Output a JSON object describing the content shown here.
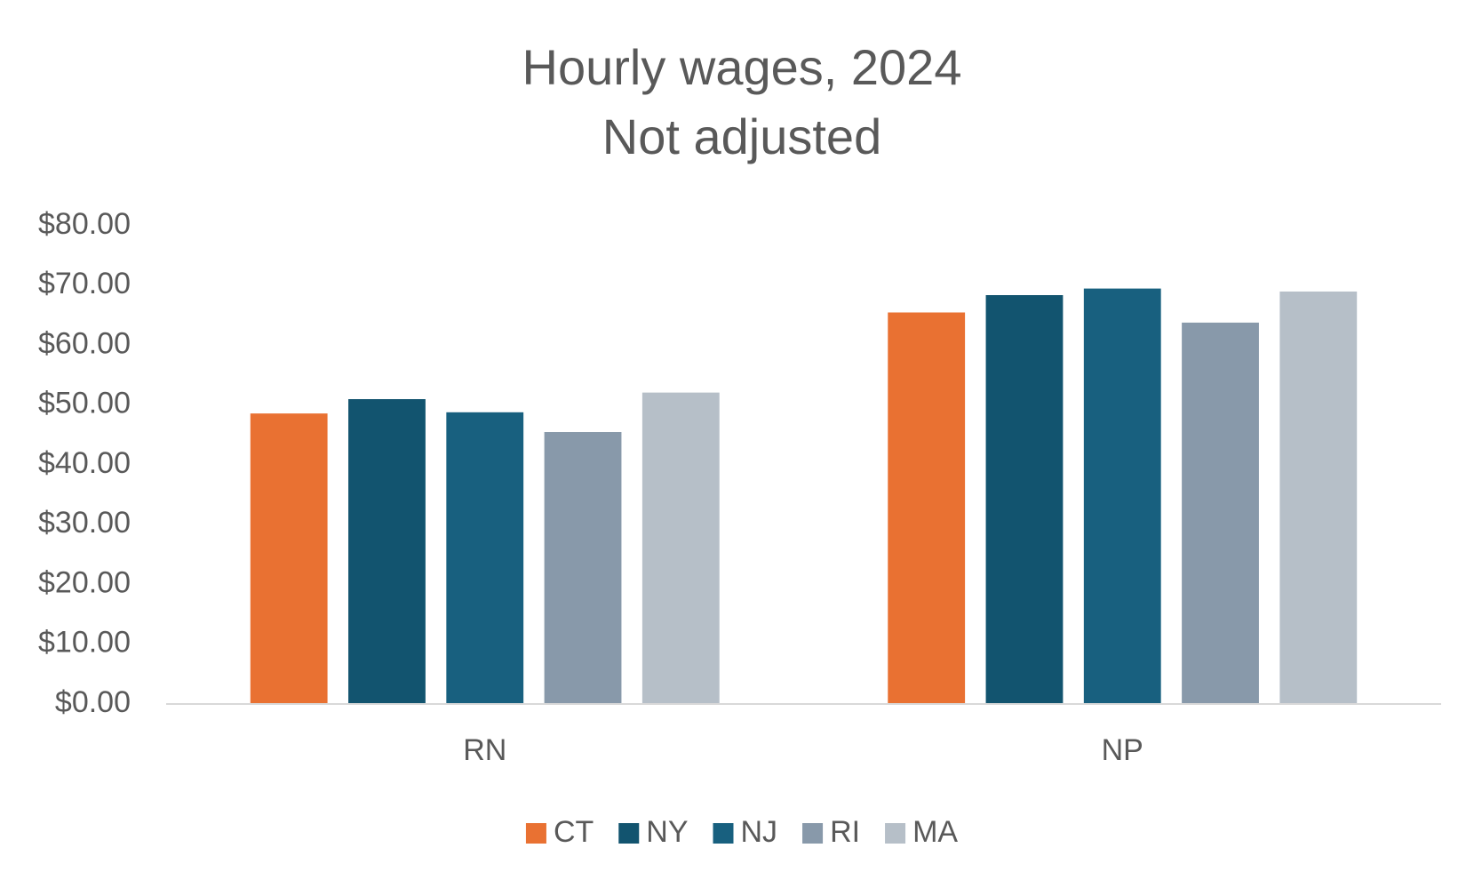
{
  "chart_data": {
    "type": "bar",
    "title": "Hourly wages, 2024",
    "subtitle": "Not adjusted",
    "categories": [
      "RN",
      "NP"
    ],
    "series": [
      {
        "name": "CT",
        "color": "#e97132",
        "values": [
          48.6,
          65.5
        ]
      },
      {
        "name": "NY",
        "color": "#12546f",
        "values": [
          51.0,
          68.4
        ]
      },
      {
        "name": "NJ",
        "color": "#18607f",
        "values": [
          48.8,
          69.5
        ]
      },
      {
        "name": "RI",
        "color": "#8899aa",
        "values": [
          45.5,
          63.8
        ]
      },
      {
        "name": "MA",
        "color": "#b6bfc8",
        "values": [
          52.1,
          69.0
        ]
      }
    ],
    "ylim": [
      0,
      80
    ],
    "yticks": [
      {
        "value": 0,
        "label": "$0.00"
      },
      {
        "value": 10,
        "label": "$10.00"
      },
      {
        "value": 20,
        "label": "$20.00"
      },
      {
        "value": 30,
        "label": "$30.00"
      },
      {
        "value": 40,
        "label": "$40.00"
      },
      {
        "value": 50,
        "label": "$50.00"
      },
      {
        "value": 60,
        "label": "$60.00"
      },
      {
        "value": 70,
        "label": "$70.00"
      },
      {
        "value": 80,
        "label": "$80.00"
      }
    ],
    "grid": false,
    "legend": "bottom"
  }
}
